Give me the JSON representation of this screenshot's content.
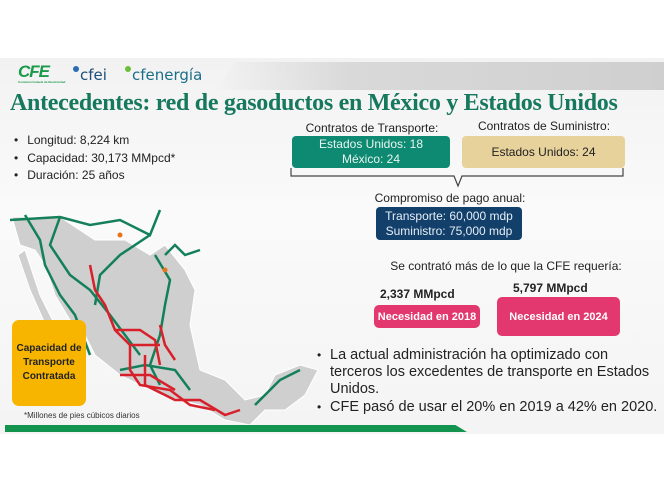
{
  "logos": {
    "cfe": "CFE",
    "cfe_sub": "Comisión Federal de Electricidad",
    "cfei": "cfei",
    "cfenergia": "cfenergía"
  },
  "title": "Antecedentes: red de gasoductos en México y Estados Unidos",
  "bullets": [
    "Longitud: 8,224 km",
    "Capacidad: 30,173 MMpcd*",
    "Duración: 25 años"
  ],
  "transporte": {
    "label": "Contratos de Transporte:",
    "line1": "Estados Unidos: 18",
    "line2": "México: 24",
    "color": "#0e8a72"
  },
  "suministro": {
    "label": "Contratos de Suministro:",
    "line1": "Estados Unidos: 24",
    "color": "#e8d29c"
  },
  "compromiso": {
    "label": "Compromiso de pago anual:",
    "line1": "Transporte: 60,000 mdp",
    "line2": "Suministro: 75,000 mdp",
    "color": "#12406a"
  },
  "contrato_note": "Se contrató más de lo que la CFE requería:",
  "needs": [
    {
      "value": "2,337 MMpcd",
      "label": "Necesidad en 2018"
    },
    {
      "value": "5,797 MMpcd",
      "label": "Necesidad en 2024"
    }
  ],
  "right_bullets": [
    "La actual administración ha optimizado con terceros los excedentes de transporte en Estados Unidos.",
    "CFE pasó de usar el 20% en 2019 a 42% en 2020."
  ],
  "capacity_box": "Capacidad de Transporte Contratada",
  "footnote": "*Millones de pies cúbicos diarios",
  "colors": {
    "title": "#16785d",
    "pipeline_green": "#14805a",
    "pipeline_red": "#d8202a",
    "orange": "#f7b500",
    "pink": "#e2386f"
  }
}
